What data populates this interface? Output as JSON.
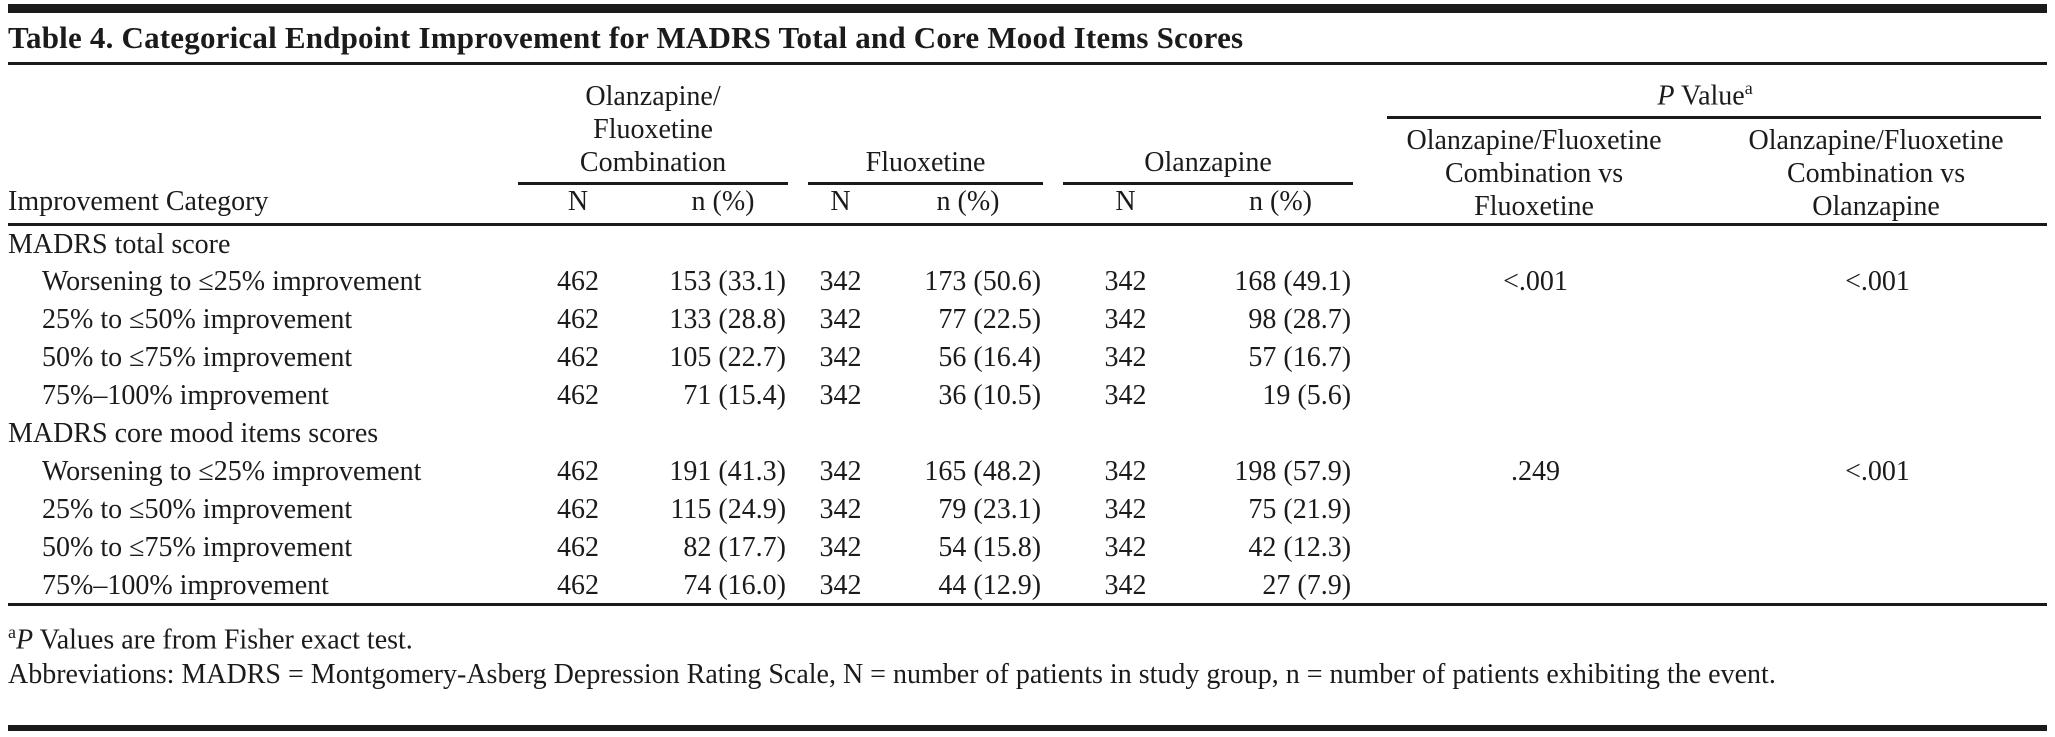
{
  "table": {
    "title": "Table 4. Categorical Endpoint Improvement for MADRS Total and Core Mood Items Scores",
    "stub_header": "Improvement Category",
    "groups": {
      "ofc": {
        "line1": "Olanzapine/",
        "line2": "Fluoxetine",
        "line3": "Combination"
      },
      "fluoxetine": {
        "name": "Fluoxetine"
      },
      "olanzapine": {
        "name": "Olanzapine"
      }
    },
    "subheaders": {
      "n_total": "N",
      "n_pct": "n (%)"
    },
    "pvalue": {
      "label_italic": "P",
      "label_rest": " Value",
      "superscript": "a",
      "col1": {
        "line1": "Olanzapine/Fluoxetine",
        "line2": "Combination vs",
        "line3": "Fluoxetine"
      },
      "col2": {
        "line1": "Olanzapine/Fluoxetine",
        "line2": "Combination vs",
        "line3": "Olanzapine"
      }
    },
    "rows": [
      {
        "label": "MADRS total score",
        "ofc_n": "",
        "ofc_pct": "",
        "flx_n": "",
        "flx_pct": "",
        "olz_n": "",
        "olz_pct": "",
        "p1": "",
        "p2": ""
      },
      {
        "label": "Worsening to ≤25% improvement",
        "ofc_n": "462",
        "ofc_pct": "153 (33.1)",
        "flx_n": "342",
        "flx_pct": "173 (50.6)",
        "olz_n": "342",
        "olz_pct": "168 (49.1)",
        "p1": "<.001",
        "p2": "<.001"
      },
      {
        "label": "25% to ≤50% improvement",
        "ofc_n": "462",
        "ofc_pct": "133 (28.8)",
        "flx_n": "342",
        "flx_pct": "77 (22.5)",
        "olz_n": "342",
        "olz_pct": "98 (28.7)",
        "p1": "",
        "p2": ""
      },
      {
        "label": "50% to ≤75% improvement",
        "ofc_n": "462",
        "ofc_pct": "105 (22.7)",
        "flx_n": "342",
        "flx_pct": "56 (16.4)",
        "olz_n": "342",
        "olz_pct": "57 (16.7)",
        "p1": "",
        "p2": ""
      },
      {
        "label": "75%–100% improvement",
        "ofc_n": "462",
        "ofc_pct": "71 (15.4)",
        "flx_n": "342",
        "flx_pct": "36 (10.5)",
        "olz_n": "342",
        "olz_pct": "19 (5.6)",
        "p1": "",
        "p2": ""
      },
      {
        "label": "MADRS core mood items scores",
        "ofc_n": "",
        "ofc_pct": "",
        "flx_n": "",
        "flx_pct": "",
        "olz_n": "",
        "olz_pct": "",
        "p1": "",
        "p2": ""
      },
      {
        "label": "Worsening to ≤25% improvement",
        "ofc_n": "462",
        "ofc_pct": "191 (41.3)",
        "flx_n": "342",
        "flx_pct": "165 (48.2)",
        "olz_n": "342",
        "olz_pct": "198 (57.9)",
        "p1": ".249",
        "p2": "<.001"
      },
      {
        "label": "25% to ≤50% improvement",
        "ofc_n": "462",
        "ofc_pct": "115 (24.9)",
        "flx_n": "342",
        "flx_pct": "79 (23.1)",
        "olz_n": "342",
        "olz_pct": "75 (21.9)",
        "p1": "",
        "p2": ""
      },
      {
        "label": "50% to ≤75% improvement",
        "ofc_n": "462",
        "ofc_pct": "82 (17.7)",
        "flx_n": "342",
        "flx_pct": "54 (15.8)",
        "olz_n": "342",
        "olz_pct": "42 (12.3)",
        "p1": "",
        "p2": ""
      },
      {
        "label": "75%–100% improvement",
        "ofc_n": "462",
        "ofc_pct": "74 (16.0)",
        "flx_n": "342",
        "flx_pct": "44 (12.9)",
        "olz_n": "342",
        "olz_pct": "27 (7.9)",
        "p1": "",
        "p2": ""
      }
    ],
    "footnotes": {
      "fn1_sup": "a",
      "fn1_italic": "P",
      "fn1_text": " Values are from Fisher exact test.",
      "fn2_text": "Abbreviations: MADRS = Montgomery-Asberg Depression Rating Scale, N = number of patients in study group, n = number of patients exhibiting the event."
    }
  }
}
